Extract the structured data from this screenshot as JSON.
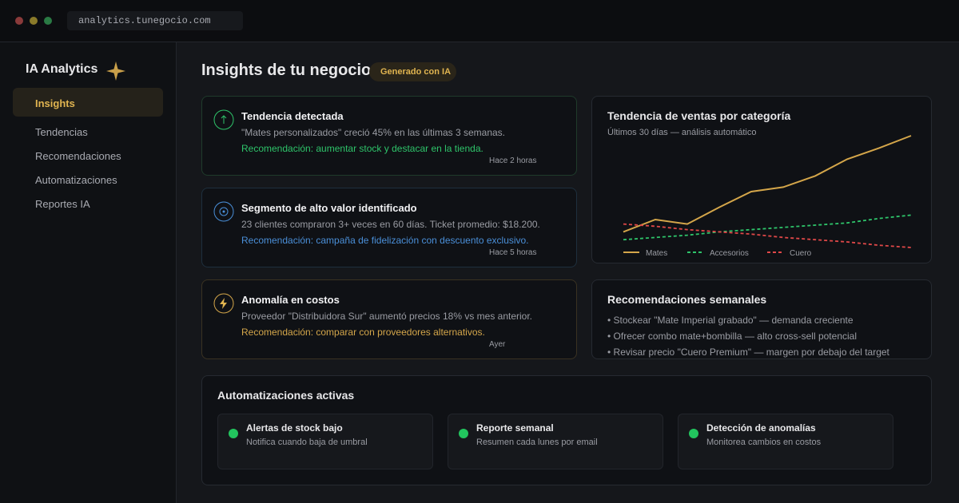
{
  "browser": {
    "url": "analytics.tunegocio.com"
  },
  "sidebar": {
    "title": "IA Analytics",
    "items": [
      "Insights",
      "Tendencias",
      "Recomendaciones",
      "Automatizaciones",
      "Reportes IA"
    ]
  },
  "header": {
    "title": "Insights de tu negocio",
    "badge": "Generado con IA"
  },
  "insights": [
    {
      "title": "Tendencia detectada",
      "text": "\"Mates personalizados\" creció 45% en las últimas 3 semanas.",
      "recommendation": "Recomendación: aumentar stock y destacar en la tienda.",
      "time": "Hace 2 horas"
    },
    {
      "title": "Segmento de alto valor identificado",
      "text": "23 clientes compraron 3+ veces en 60 días. Ticket promedio: $18.200.",
      "recommendation": "Recomendación: campaña de fidelización con descuento exclusivo.",
      "time": "Hace 5 horas"
    },
    {
      "title": "Anomalía en costos",
      "text": "Proveedor \"Distribuidora Sur\" aumentó precios 18% vs mes anterior.",
      "recommendation": "Recomendación: comparar con proveedores alternativos.",
      "time": "Ayer"
    }
  ],
  "chart_data": {
    "type": "line",
    "title": "Tendencia de ventas por categoría",
    "subtitle": "Últimos 30 días — análisis automático",
    "series": [
      {
        "name": "Mates",
        "color": "#d4a64a",
        "values": [
          14,
          25,
          21,
          36,
          50,
          54,
          64,
          79,
          89,
          100
        ]
      },
      {
        "name": "Accesorios",
        "color": "#2ec46a",
        "values": [
          7,
          9,
          11,
          14,
          16,
          18,
          20,
          22,
          26,
          29
        ]
      },
      {
        "name": "Cuero",
        "color": "#e04848",
        "values": [
          21,
          19,
          16,
          14,
          12,
          9,
          7,
          5,
          2,
          0
        ]
      }
    ]
  },
  "recommendations": {
    "title": "Recomendaciones semanales",
    "items": [
      "• Stockear \"Mate Imperial grabado\" — demanda creciente",
      "• Ofrecer combo mate+bombilla — alto cross-sell potencial",
      "• Revisar precio \"Cuero Premium\" — margen por debajo del target"
    ]
  },
  "automations": {
    "title": "Automatizaciones activas",
    "items": [
      {
        "title": "Alertas de stock bajo",
        "text": "Notifica cuando baja de umbral"
      },
      {
        "title": "Reporte semanal",
        "text": "Resumen cada lunes por email"
      },
      {
        "title": "Detección de anomalías",
        "text": "Monitorea cambios en costos"
      }
    ]
  }
}
